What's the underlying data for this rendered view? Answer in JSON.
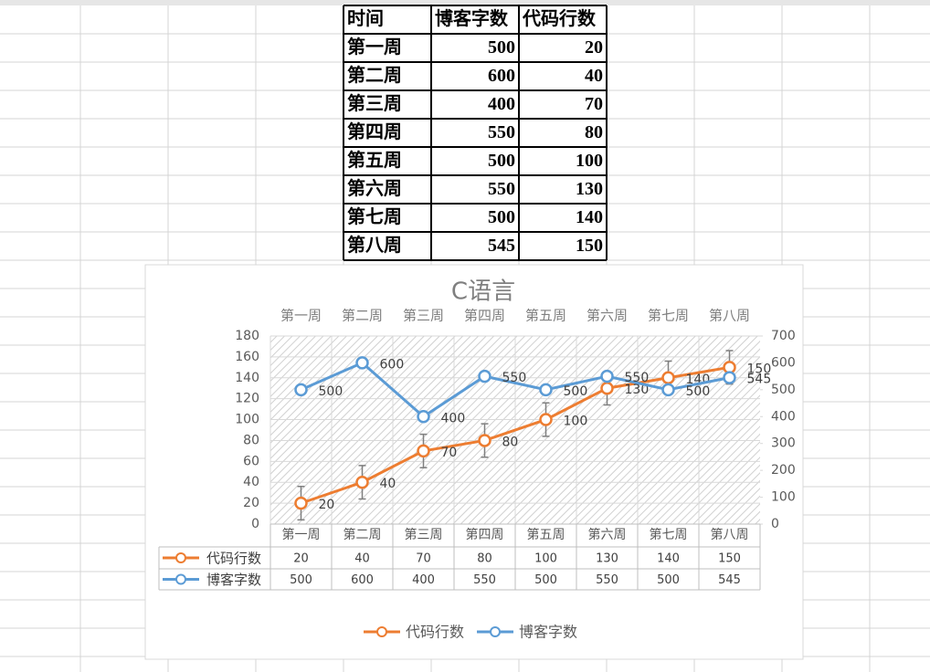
{
  "table": {
    "header": [
      "时间",
      "博客字数",
      "代码行数"
    ],
    "rows": [
      [
        "第一周",
        500,
        20
      ],
      [
        "第二周",
        600,
        40
      ],
      [
        "第三周",
        400,
        70
      ],
      [
        "第四周",
        550,
        80
      ],
      [
        "第五周",
        500,
        100
      ],
      [
        "第六周",
        550,
        130
      ],
      [
        "第七周",
        500,
        140
      ],
      [
        "第八周",
        545,
        150
      ]
    ]
  },
  "chart_data": {
    "type": "line",
    "title": "C语言",
    "categories": [
      "第一周",
      "第二周",
      "第三周",
      "第四周",
      "第五周",
      "第六周",
      "第七周",
      "第八周"
    ],
    "series": [
      {
        "name": "代码行数",
        "color": "#ed7d31",
        "values": [
          20,
          40,
          70,
          80,
          100,
          130,
          140,
          150
        ],
        "error": 16
      },
      {
        "name": "博客字数",
        "color": "#5b9bd5",
        "axis": "y2",
        "values": [
          500,
          600,
          400,
          550,
          500,
          550,
          500,
          545
        ]
      }
    ],
    "ylim": [
      0,
      180
    ],
    "yticks": [
      0,
      20,
      40,
      60,
      80,
      100,
      120,
      140,
      160,
      180
    ],
    "y2lim": [
      0,
      700
    ],
    "y2ticks": [
      0,
      100,
      200,
      300,
      400,
      500,
      600,
      700
    ],
    "grid": true,
    "legend": "bottom",
    "data_table": true
  }
}
